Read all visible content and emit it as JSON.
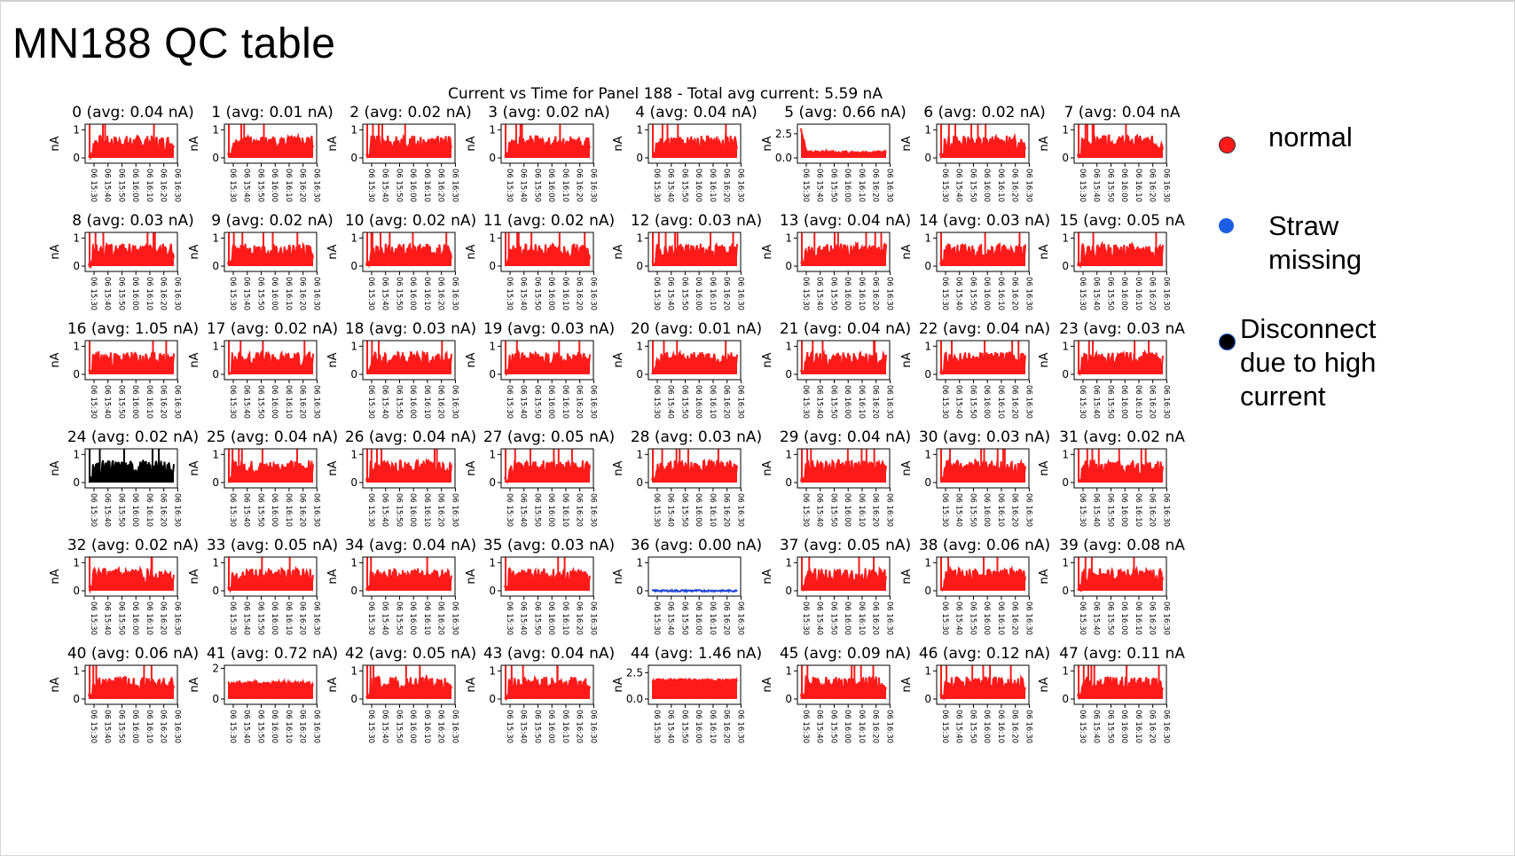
{
  "slide_title": "MN188 QC table",
  "figure_title": "Current vs Time for Panel 188 - Total avg current: 5.59 nA",
  "legend": [
    {
      "label": "normal",
      "color": "#ff1a1a"
    },
    {
      "label": "Straw missing",
      "color": "#1a5ee6"
    },
    {
      "label": "Disconnect due to high current",
      "color": "#000000"
    }
  ],
  "chart_data": {
    "type": "line",
    "title": "Current vs Time for Panel 188 - Total avg current: 5.59 nA",
    "ylabel": "nA",
    "x_tick_labels": [
      "06 15:30",
      "06 15:40",
      "06 15:50",
      "06 16:00",
      "06 16:10",
      "06 16:20",
      "06 16:30"
    ],
    "panels": [
      {
        "title": "0 (avg: 0.04 nA)",
        "avg": 0.04,
        "status": "normal",
        "yticks": [
          "0",
          "1"
        ],
        "ymax": 1.2
      },
      {
        "title": "1 (avg: 0.01 nA)",
        "avg": 0.01,
        "status": "normal",
        "yticks": [
          "0",
          "1"
        ],
        "ymax": 1.2
      },
      {
        "title": "2 (avg: 0.02 nA)",
        "avg": 0.02,
        "status": "normal",
        "yticks": [
          "0",
          "1"
        ],
        "ymax": 1.2
      },
      {
        "title": "3 (avg: 0.02 nA)",
        "avg": 0.02,
        "status": "normal",
        "yticks": [
          "0",
          "1"
        ],
        "ymax": 1.2
      },
      {
        "title": "4 (avg: 0.04 nA)",
        "avg": 0.04,
        "status": "normal",
        "yticks": [
          "0",
          "1"
        ],
        "ymax": 1.2
      },
      {
        "title": "5 (avg: 0.66 nA)",
        "avg": 0.66,
        "status": "normal",
        "yticks": [
          "0.0",
          "2.5"
        ],
        "ymax": 3.5
      },
      {
        "title": "6 (avg: 0.02 nA)",
        "avg": 0.02,
        "status": "normal",
        "yticks": [
          "0",
          "1"
        ],
        "ymax": 1.2
      },
      {
        "title": "7 (avg: 0.04 nA",
        "avg": 0.04,
        "status": "normal",
        "yticks": [
          "0",
          "1"
        ],
        "ymax": 1.2
      },
      {
        "title": "8 (avg: 0.03 nA)",
        "avg": 0.03,
        "status": "normal",
        "yticks": [
          "0",
          "1"
        ],
        "ymax": 1.2
      },
      {
        "title": "9 (avg: 0.02 nA)",
        "avg": 0.02,
        "status": "normal",
        "yticks": [
          "0",
          "1"
        ],
        "ymax": 1.2
      },
      {
        "title": "10 (avg: 0.02 nA)",
        "avg": 0.02,
        "status": "normal",
        "yticks": [
          "0",
          "1"
        ],
        "ymax": 1.2
      },
      {
        "title": "11 (avg: 0.02 nA)",
        "avg": 0.02,
        "status": "normal",
        "yticks": [
          "0",
          "1"
        ],
        "ymax": 1.2
      },
      {
        "title": "12 (avg: 0.03 nA)",
        "avg": 0.03,
        "status": "normal",
        "yticks": [
          "0",
          "1"
        ],
        "ymax": 1.2
      },
      {
        "title": "13 (avg: 0.04 nA)",
        "avg": 0.04,
        "status": "normal",
        "yticks": [
          "0",
          "1"
        ],
        "ymax": 1.2
      },
      {
        "title": "14 (avg: 0.03 nA)",
        "avg": 0.03,
        "status": "normal",
        "yticks": [
          "0",
          "1"
        ],
        "ymax": 1.2
      },
      {
        "title": "15 (avg: 0.05 nA",
        "avg": 0.05,
        "status": "normal",
        "yticks": [
          "0",
          "1"
        ],
        "ymax": 1.2
      },
      {
        "title": "16 (avg: 1.05 nA)",
        "avg": 1.05,
        "status": "normal",
        "yticks": [
          "0",
          "1"
        ],
        "ymax": 1.2
      },
      {
        "title": "17 (avg: 0.02 nA)",
        "avg": 0.02,
        "status": "normal",
        "yticks": [
          "0",
          "1"
        ],
        "ymax": 1.2
      },
      {
        "title": "18 (avg: 0.03 nA)",
        "avg": 0.03,
        "status": "normal",
        "yticks": [
          "0",
          "1"
        ],
        "ymax": 1.2
      },
      {
        "title": "19 (avg: 0.03 nA)",
        "avg": 0.03,
        "status": "normal",
        "yticks": [
          "0",
          "1"
        ],
        "ymax": 1.2
      },
      {
        "title": "20 (avg: 0.01 nA)",
        "avg": 0.01,
        "status": "normal",
        "yticks": [
          "0",
          "1"
        ],
        "ymax": 1.2
      },
      {
        "title": "21 (avg: 0.04 nA)",
        "avg": 0.04,
        "status": "normal",
        "yticks": [
          "0",
          "1"
        ],
        "ymax": 1.2
      },
      {
        "title": "22 (avg: 0.04 nA)",
        "avg": 0.04,
        "status": "normal",
        "yticks": [
          "0",
          "1"
        ],
        "ymax": 1.2
      },
      {
        "title": "23 (avg: 0.03 nA",
        "avg": 0.03,
        "status": "normal",
        "yticks": [
          "0",
          "1"
        ],
        "ymax": 1.2
      },
      {
        "title": "24 (avg: 0.02 nA)",
        "avg": 0.02,
        "status": "disconnect",
        "yticks": [
          "0",
          "1"
        ],
        "ymax": 1.2
      },
      {
        "title": "25 (avg: 0.04 nA)",
        "avg": 0.04,
        "status": "normal",
        "yticks": [
          "0",
          "1"
        ],
        "ymax": 1.2
      },
      {
        "title": "26 (avg: 0.04 nA)",
        "avg": 0.04,
        "status": "normal",
        "yticks": [
          "0",
          "1"
        ],
        "ymax": 1.2
      },
      {
        "title": "27 (avg: 0.05 nA)",
        "avg": 0.05,
        "status": "normal",
        "yticks": [
          "0",
          "1"
        ],
        "ymax": 1.2
      },
      {
        "title": "28 (avg: 0.03 nA)",
        "avg": 0.03,
        "status": "normal",
        "yticks": [
          "0",
          "1"
        ],
        "ymax": 1.2
      },
      {
        "title": "29 (avg: 0.04 nA)",
        "avg": 0.04,
        "status": "normal",
        "yticks": [
          "0",
          "1"
        ],
        "ymax": 1.2
      },
      {
        "title": "30 (avg: 0.03 nA)",
        "avg": 0.03,
        "status": "normal",
        "yticks": [
          "0",
          "1"
        ],
        "ymax": 1.2
      },
      {
        "title": "31 (avg: 0.02 nA",
        "avg": 0.02,
        "status": "normal",
        "yticks": [
          "0",
          "1"
        ],
        "ymax": 1.2
      },
      {
        "title": "32 (avg: 0.02 nA)",
        "avg": 0.02,
        "status": "normal",
        "yticks": [
          "0",
          "1"
        ],
        "ymax": 1.2
      },
      {
        "title": "33 (avg: 0.05 nA)",
        "avg": 0.05,
        "status": "normal",
        "yticks": [
          "0",
          "1"
        ],
        "ymax": 1.2
      },
      {
        "title": "34 (avg: 0.04 nA)",
        "avg": 0.04,
        "status": "normal",
        "yticks": [
          "0",
          "1"
        ],
        "ymax": 1.2
      },
      {
        "title": "35 (avg: 0.03 nA)",
        "avg": 0.03,
        "status": "normal",
        "yticks": [
          "0",
          "1"
        ],
        "ymax": 1.2
      },
      {
        "title": "36 (avg: 0.00 nA)",
        "avg": 0.0,
        "status": "missing",
        "yticks": [
          "0",
          "1"
        ],
        "ymax": 1.2
      },
      {
        "title": "37 (avg: 0.05 nA)",
        "avg": 0.05,
        "status": "normal",
        "yticks": [
          "0",
          "1"
        ],
        "ymax": 1.2
      },
      {
        "title": "38 (avg: 0.06 nA)",
        "avg": 0.06,
        "status": "normal",
        "yticks": [
          "0",
          "1"
        ],
        "ymax": 1.2
      },
      {
        "title": "39 (avg: 0.08 nA",
        "avg": 0.08,
        "status": "normal",
        "yticks": [
          "0",
          "1"
        ],
        "ymax": 1.2
      },
      {
        "title": "40 (avg: 0.06 nA)",
        "avg": 0.06,
        "status": "normal",
        "yticks": [
          "0",
          "1"
        ],
        "ymax": 1.2
      },
      {
        "title": "41 (avg: 0.72 nA)",
        "avg": 0.72,
        "status": "normal",
        "yticks": [
          "0",
          "2"
        ],
        "ymax": 2.2
      },
      {
        "title": "42 (avg: 0.05 nA)",
        "avg": 0.05,
        "status": "normal",
        "yticks": [
          "0",
          "1"
        ],
        "ymax": 1.2
      },
      {
        "title": "43 (avg: 0.04 nA)",
        "avg": 0.04,
        "status": "normal",
        "yticks": [
          "0",
          "1"
        ],
        "ymax": 1.2
      },
      {
        "title": "44 (avg: 1.46 nA)",
        "avg": 1.46,
        "status": "normal",
        "yticks": [
          "0.0",
          "2.5"
        ],
        "ymax": 3.2
      },
      {
        "title": "45 (avg: 0.09 nA)",
        "avg": 0.09,
        "status": "normal",
        "yticks": [
          "0",
          "1"
        ],
        "ymax": 1.2
      },
      {
        "title": "46 (avg: 0.12 nA)",
        "avg": 0.12,
        "status": "normal",
        "yticks": [
          "0",
          "1"
        ],
        "ymax": 1.2
      },
      {
        "title": "47 (avg: 0.11 nA",
        "avg": 0.11,
        "status": "normal",
        "yticks": [
          "0",
          "1"
        ],
        "ymax": 1.2
      }
    ]
  },
  "colors": {
    "normal": "#ff1a1a",
    "missing": "#1f45d6",
    "disconnect": "#000000"
  }
}
